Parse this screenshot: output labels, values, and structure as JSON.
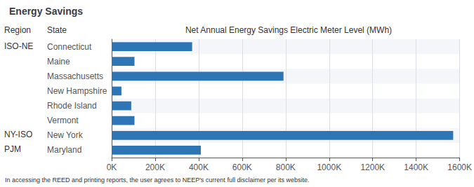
{
  "chart_data": {
    "type": "bar",
    "orientation": "horizontal",
    "title": "Energy Savings",
    "xlabel": "Net Annual Energy Savings Electric Meter Level (MWh)",
    "annotations": [
      "Region",
      "State",
      "In accessing the REED and printing reports, the user agrees to NEEP's current full disclaimer per its website."
    ],
    "categories": [
      "Connecticut",
      "Maine",
      "Massachusetts",
      "New Hampshire",
      "Rhode Island",
      "Vermont",
      "New York",
      "Maryland"
    ],
    "regions": [
      "ISO-NE",
      null,
      null,
      null,
      null,
      null,
      "NY-ISO",
      "PJM"
    ],
    "values": [
      370000,
      105000,
      790000,
      45000,
      90000,
      105000,
      1570000,
      410000
    ],
    "color": "#2E75B6",
    "xlim": [
      0,
      1600000
    ],
    "xticks": [
      {
        "value": 0,
        "label": "0K"
      },
      {
        "value": 200000,
        "label": "200K"
      },
      {
        "value": 400000,
        "label": "400K"
      },
      {
        "value": 600000,
        "label": "600K"
      },
      {
        "value": 800000,
        "label": "800K"
      },
      {
        "value": 1000000,
        "label": "1000K"
      },
      {
        "value": 1200000,
        "label": "1200K"
      },
      {
        "value": 1400000,
        "label": "1400K"
      },
      {
        "value": 1600000,
        "label": "1600K"
      }
    ],
    "grid": true
  }
}
